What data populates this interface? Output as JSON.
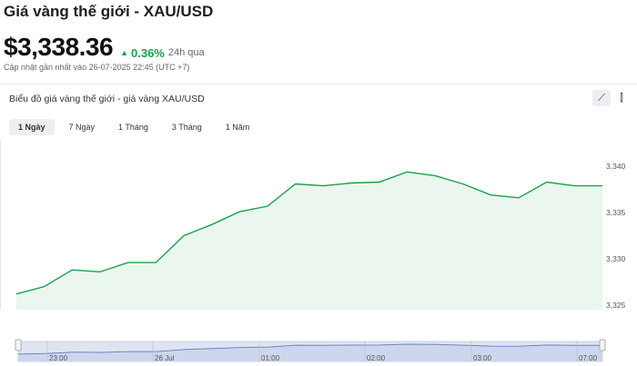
{
  "header": {
    "title": "Giá vàng thế giới - XAU/USD",
    "price": "$3,338.36",
    "change": "0.36%",
    "period": "24h qua",
    "updated": "Cập nhật gần nhất vào 26-07-2025 22:45 (UTC +7)"
  },
  "card": {
    "title": "Biểu đồ giá vàng thế giới - giá vàng XAU/USD",
    "chart_type_icons": [
      "line-chart-icon",
      "candlestick-icon"
    ]
  },
  "tabs": [
    {
      "label": "1 Ngày",
      "active": true
    },
    {
      "label": "7 Ngày",
      "active": false
    },
    {
      "label": "1 Tháng",
      "active": false
    },
    {
      "label": "3 Tháng",
      "active": false
    },
    {
      "label": "1 Năm",
      "active": false
    }
  ],
  "colors": {
    "line": "#16a34a",
    "fill": "#eaf6ee",
    "up": "#16a34a"
  },
  "chart_data": {
    "type": "area",
    "ylim": [
      3324.5,
      3341
    ],
    "yticks": [
      3340,
      3335,
      3330,
      3325
    ],
    "ytick_labels": [
      "3,340",
      "3,335",
      "3,330",
      "3,325"
    ],
    "values": [
      3326.2,
      3327.0,
      3328.8,
      3328.6,
      3329.6,
      3329.6,
      3332.5,
      3333.7,
      3335.1,
      3335.7,
      3338.1,
      3337.9,
      3338.2,
      3338.3,
      3339.4,
      3339.0,
      3338.1,
      3336.9,
      3336.6,
      3338.3,
      3337.9,
      3337.9
    ],
    "navigator_xticks": [
      "23:00",
      "26 Jul",
      "01:00",
      "02:00",
      "03:00",
      "07:00"
    ]
  }
}
